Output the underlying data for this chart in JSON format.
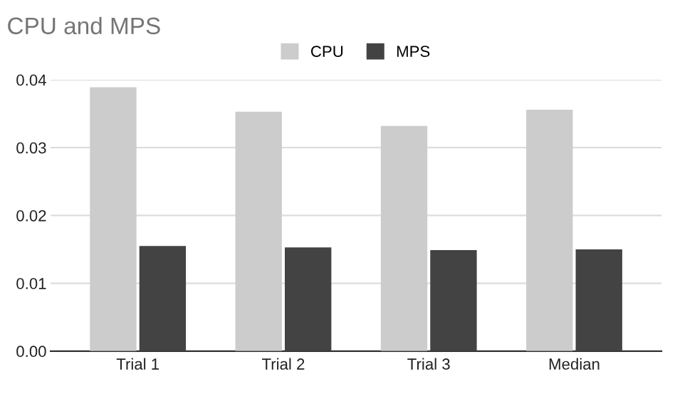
{
  "chart_data": {
    "type": "bar",
    "title": "CPU and MPS",
    "categories": [
      "Trial 1",
      "Trial 2",
      "Trial 3",
      "Median"
    ],
    "series": [
      {
        "name": "CPU",
        "color": "#cccccc",
        "values": [
          0.0389,
          0.0353,
          0.0332,
          0.0356
        ]
      },
      {
        "name": "MPS",
        "color": "#434343",
        "values": [
          0.0155,
          0.0153,
          0.0149,
          0.015
        ]
      }
    ],
    "ylim": [
      0,
      0.04
    ],
    "yticks": [
      {
        "value": 0,
        "label": "0.00"
      },
      {
        "value": 0.01,
        "label": "0.01"
      },
      {
        "value": 0.02,
        "label": "0.02"
      },
      {
        "value": 0.03,
        "label": "0.03"
      },
      {
        "value": 0.04,
        "label": "0.04"
      }
    ],
    "grid": "y",
    "legend": "top"
  }
}
